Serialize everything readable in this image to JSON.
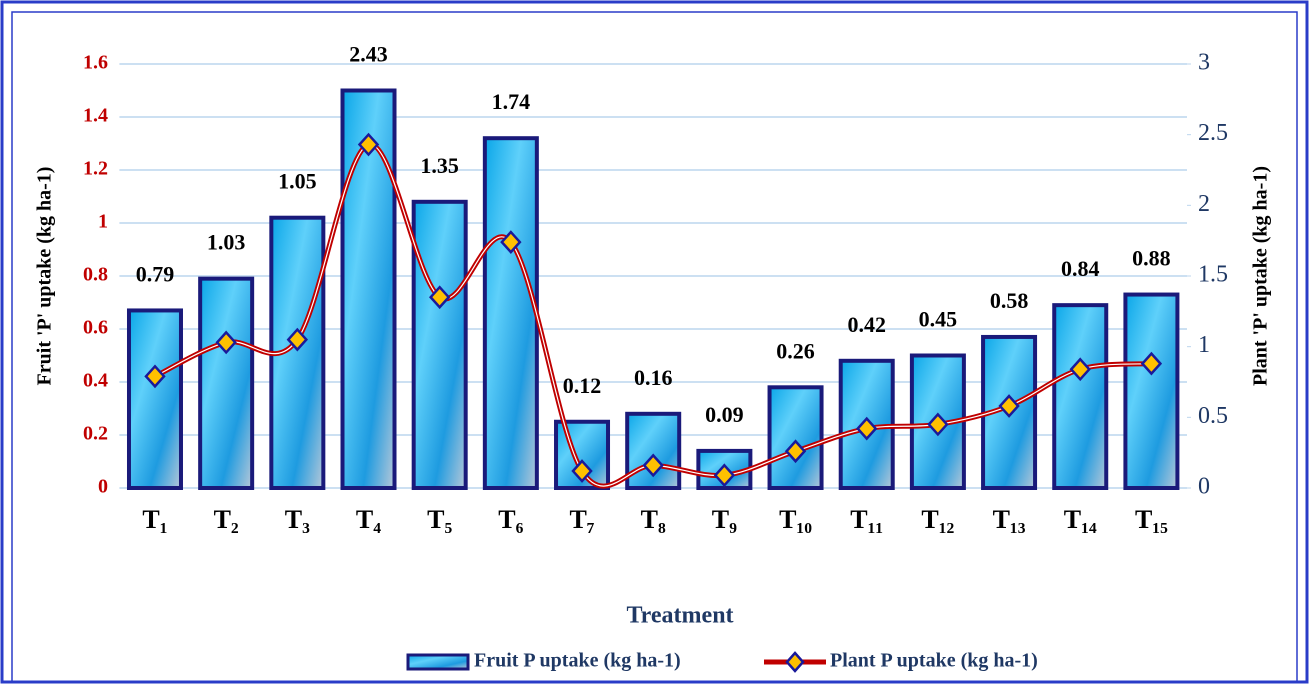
{
  "chart_data": {
    "type": "bar-line",
    "xlabel": "Treatment",
    "ylabel": "Fruit 'P' uptake (kg ha-1)",
    "y2label": "Plant 'P' uptake (kg ha-1)",
    "categories": [
      "T₁",
      "T₂",
      "T₃",
      "T₄",
      "T₅",
      "T₆",
      "T₇",
      "T₈",
      "T₉",
      "T₁₀",
      "T₁₁",
      "T₁₂",
      "T₁₃",
      "T₁₄",
      "T₁₅"
    ],
    "series": [
      {
        "name": "Fruit P uptake (kg ha-1)",
        "type": "bar",
        "color": "#1a1a7a",
        "values": [
          0.67,
          0.79,
          1.02,
          1.5,
          1.08,
          1.32,
          0.25,
          0.28,
          0.14,
          0.38,
          0.48,
          0.5,
          0.57,
          0.69,
          0.73
        ]
      },
      {
        "name": "Plant P uptake (kg ha-1)",
        "type": "line",
        "axis": "y2",
        "color": "#c00000",
        "values": [
          0.79,
          1.03,
          1.05,
          2.43,
          1.35,
          1.74,
          0.12,
          0.16,
          0.09,
          0.26,
          0.42,
          0.45,
          0.58,
          0.84,
          0.88
        ]
      }
    ],
    "ylim": [
      0,
      1.6
    ],
    "yticks": [
      0,
      0.2,
      0.4,
      0.6,
      0.8,
      1,
      1.2,
      1.4,
      1.6
    ],
    "y2lim": [
      0,
      3
    ],
    "y2ticks": [
      0,
      0.5,
      1,
      1.5,
      2,
      2.5,
      3
    ],
    "grid": true
  }
}
